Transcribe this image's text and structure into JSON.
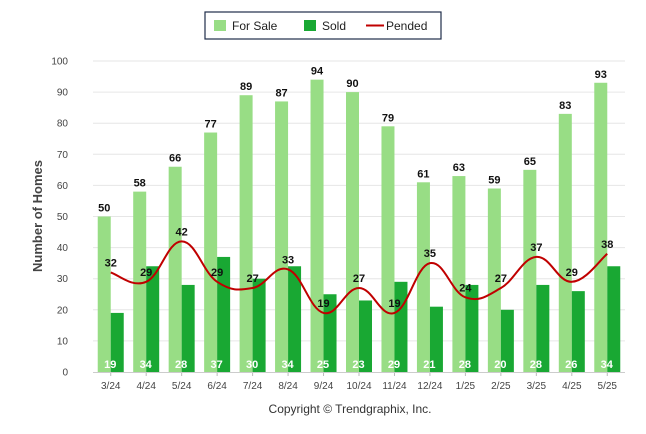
{
  "chart_data": {
    "type": "bar",
    "categories": [
      "3/24",
      "4/24",
      "5/24",
      "6/24",
      "7/24",
      "8/24",
      "9/24",
      "10/24",
      "11/24",
      "12/24",
      "1/25",
      "2/25",
      "3/25",
      "4/25",
      "5/25"
    ],
    "series": [
      {
        "name": "For Sale",
        "type": "bar",
        "color": "#98dd85",
        "values": [
          50,
          58,
          66,
          77,
          89,
          87,
          94,
          90,
          79,
          61,
          63,
          59,
          65,
          83,
          93
        ]
      },
      {
        "name": "Sold",
        "type": "bar",
        "color": "#19a833",
        "values": [
          19,
          34,
          28,
          37,
          30,
          34,
          25,
          23,
          29,
          21,
          28,
          20,
          28,
          26,
          34
        ]
      },
      {
        "name": "Pended",
        "type": "line",
        "color": "#c00000",
        "values": [
          32,
          29,
          42,
          29,
          27,
          33,
          19,
          27,
          19,
          35,
          24,
          27,
          37,
          29,
          38
        ]
      }
    ],
    "ylabel": "Number of Homes",
    "xlabel": "",
    "ylim": [
      0,
      100
    ],
    "yticks": [
      0,
      10,
      20,
      30,
      40,
      50,
      60,
      70,
      80,
      90,
      100
    ],
    "grid": true,
    "legend": "top-center"
  },
  "footer": {
    "copyright": "Copyright © Trendgraphix, Inc."
  }
}
